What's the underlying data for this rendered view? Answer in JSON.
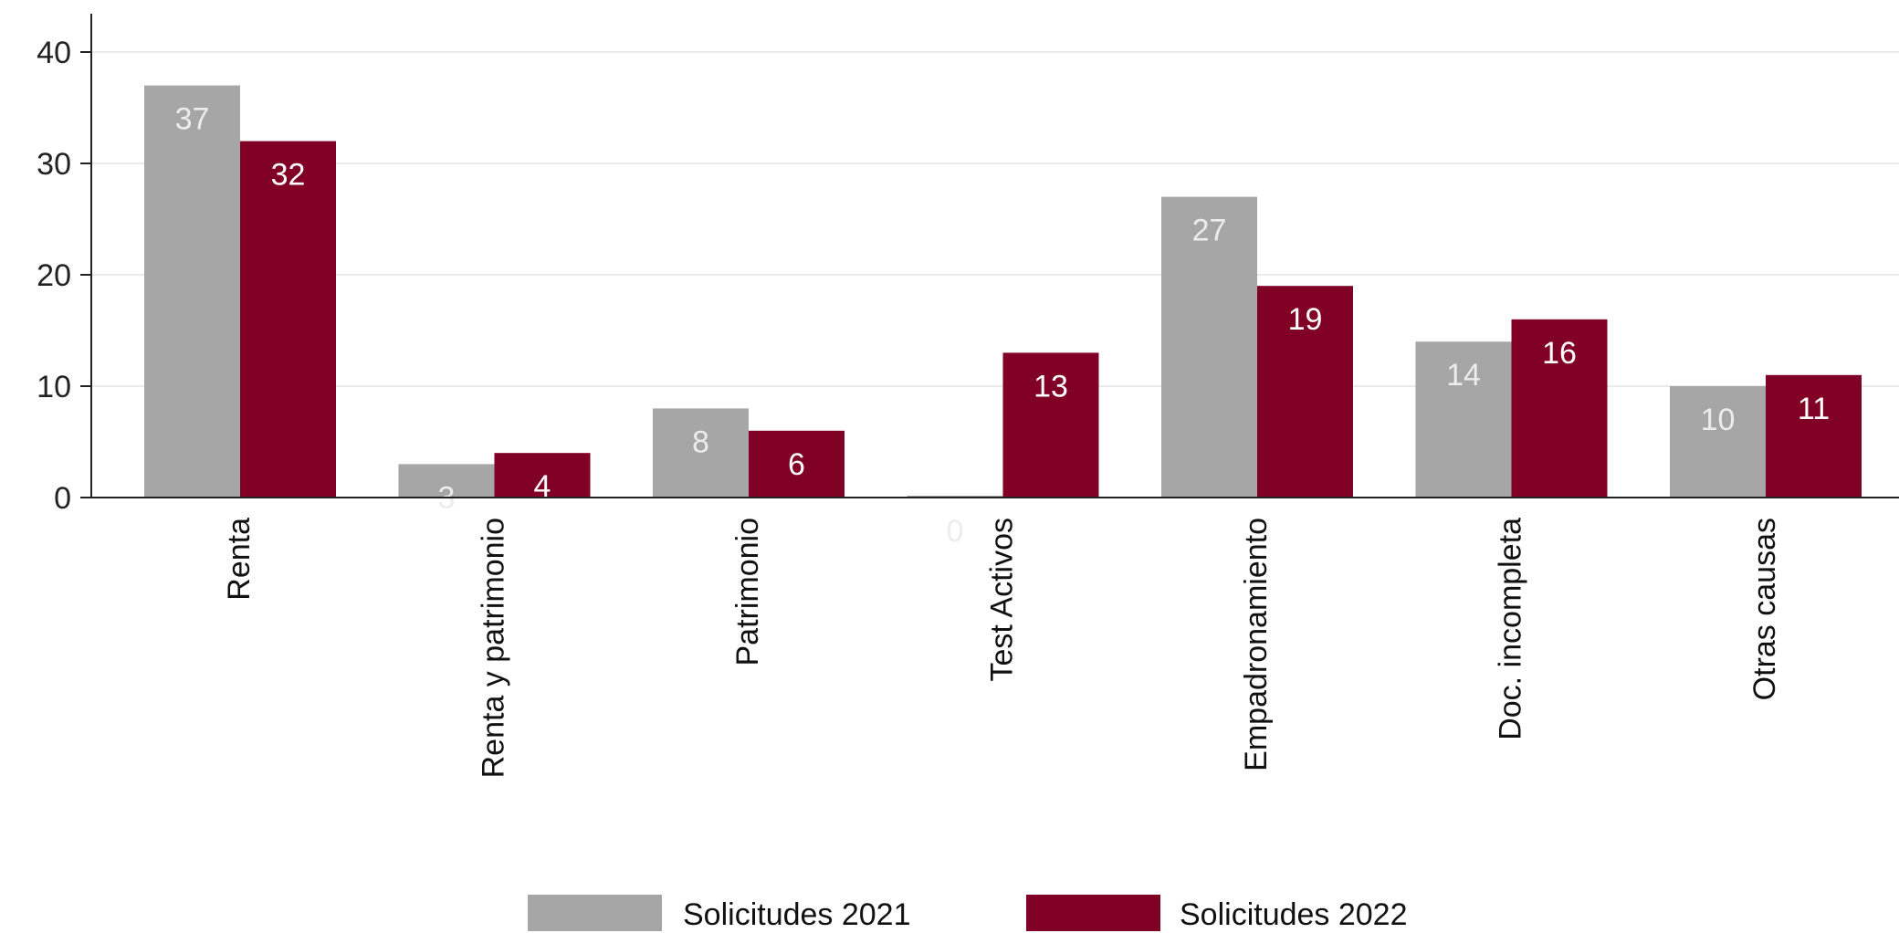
{
  "chart_data": {
    "type": "bar",
    "title": "",
    "xlabel": "",
    "ylabel": "",
    "categories": [
      "Renta",
      "Renta y patrimonio",
      "Patrimonio",
      "Test Activos",
      "Empadronamiento",
      "Doc. incompleta",
      "Otras causas"
    ],
    "series": [
      {
        "name": "Solicitudes 2021",
        "values": [
          37,
          3,
          8,
          0,
          27,
          14,
          10
        ],
        "labels": [
          "37",
          "3",
          "8",
          "0",
          "27",
          "14",
          "10"
        ],
        "color": "#a6a6a6",
        "label_color": "#ececec"
      },
      {
        "name": "Solicitudes 2022",
        "values": [
          32,
          4,
          6,
          13,
          19,
          16,
          11
        ],
        "labels": [
          "32",
          "4",
          "6",
          "13",
          "19",
          "16",
          "11"
        ],
        "color": "#800026",
        "label_color": "#ffffff"
      }
    ],
    "ylim": [
      0,
      40
    ],
    "yticks": [
      0,
      10,
      20,
      30,
      40
    ],
    "grid": true,
    "grid_color": "#eaeaea",
    "legend_position": "bottom-center",
    "category_label_rotation": "vertical"
  }
}
